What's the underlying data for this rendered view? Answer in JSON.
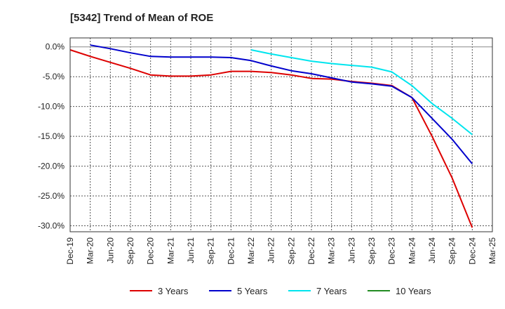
{
  "chart_data": {
    "type": "line",
    "title": "[5342]  Trend of Mean of ROE",
    "x": [
      "Dec-19",
      "Mar-20",
      "Jun-20",
      "Sep-20",
      "Dec-20",
      "Mar-21",
      "Jun-21",
      "Sep-21",
      "Dec-21",
      "Mar-22",
      "Jun-22",
      "Sep-22",
      "Dec-22",
      "Mar-23",
      "Jun-23",
      "Sep-23",
      "Dec-23",
      "Mar-24",
      "Jun-24",
      "Sep-24",
      "Dec-24",
      "Mar-25"
    ],
    "y_ticks": [
      "0.0%",
      "-5.0%",
      "-10.0%",
      "-15.0%",
      "-20.0%",
      "-25.0%",
      "-30.0%"
    ],
    "ylim": [
      -31,
      1.5
    ],
    "grid": true,
    "legend_position": "bottom",
    "series": [
      {
        "name": "3 Years",
        "color": "#dd0000",
        "values": [
          -0.5,
          -1.6,
          -2.6,
          -3.6,
          -4.7,
          -4.9,
          -4.9,
          -4.7,
          -4.1,
          -4.1,
          -4.3,
          -4.7,
          -5.3,
          -5.4,
          -5.8,
          -6.1,
          -6.5,
          -8.5,
          -15.0,
          -22.0,
          -30.3,
          null
        ]
      },
      {
        "name": "5 Years",
        "color": "#0000cc",
        "values": [
          null,
          0.3,
          -0.3,
          -1.0,
          -1.6,
          -1.7,
          -1.7,
          -1.7,
          -1.8,
          -2.3,
          -3.2,
          -4.0,
          -4.5,
          -5.2,
          -5.9,
          -6.2,
          -6.6,
          -8.5,
          -12.0,
          -15.5,
          -19.6,
          null
        ]
      },
      {
        "name": "7 Years",
        "color": "#00e5ee",
        "values": [
          null,
          null,
          null,
          null,
          null,
          null,
          null,
          null,
          null,
          -0.5,
          -1.2,
          -1.8,
          -2.4,
          -2.8,
          -3.1,
          -3.4,
          -4.2,
          -6.5,
          -9.5,
          -12.0,
          -14.7,
          null
        ]
      },
      {
        "name": "10 Years",
        "color": "#228b22",
        "values": [
          null,
          null,
          null,
          null,
          null,
          null,
          null,
          null,
          null,
          null,
          null,
          null,
          null,
          null,
          null,
          null,
          null,
          null,
          null,
          null,
          null,
          null
        ]
      }
    ]
  }
}
